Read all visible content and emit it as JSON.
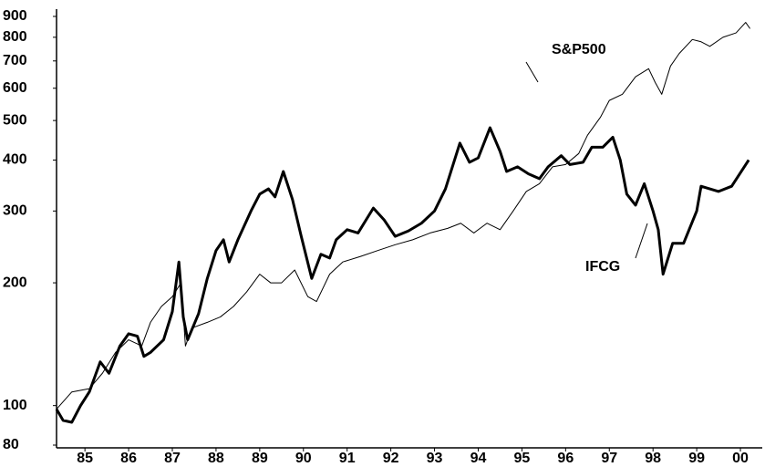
{
  "chart_data": {
    "type": "line",
    "log_y": true,
    "grid": false,
    "ylim": [
      80,
      900
    ],
    "yticks": [
      80,
      100,
      200,
      300,
      400,
      500,
      600,
      700,
      800,
      900
    ],
    "xlim": [
      1984.85,
      2001.0
    ],
    "xticks": [
      {
        "value": 1985.5,
        "label": "85"
      },
      {
        "value": 1986.5,
        "label": "86"
      },
      {
        "value": 1987.5,
        "label": "87"
      },
      {
        "value": 1988.5,
        "label": "88"
      },
      {
        "value": 1989.5,
        "label": "89"
      },
      {
        "value": 1990.5,
        "label": "90"
      },
      {
        "value": 1991.5,
        "label": "91"
      },
      {
        "value": 1992.5,
        "label": "92"
      },
      {
        "value": 1993.5,
        "label": "93"
      },
      {
        "value": 1994.5,
        "label": "94"
      },
      {
        "value": 1995.5,
        "label": "95"
      },
      {
        "value": 1996.5,
        "label": "96"
      },
      {
        "value": 1997.5,
        "label": "97"
      },
      {
        "value": 1998.5,
        "label": "98"
      },
      {
        "value": 1999.5,
        "label": "99"
      },
      {
        "value": 2000.5,
        "label": "00"
      }
    ],
    "annotations": [
      {
        "text": "S&P500"
      },
      {
        "text": "IFCG"
      }
    ],
    "series": [
      {
        "name": "S&P500",
        "color": "#000000",
        "line_width": 1,
        "x": [
          1984.85,
          1985.2,
          1985.6,
          1985.9,
          1986.2,
          1986.5,
          1986.8,
          1987.0,
          1987.25,
          1987.5,
          1987.7,
          1987.8,
          1987.95,
          1988.3,
          1988.6,
          1988.9,
          1989.2,
          1989.5,
          1989.75,
          1990.0,
          1990.3,
          1990.6,
          1990.8,
          1991.1,
          1991.4,
          1991.8,
          1992.2,
          1992.6,
          1993.0,
          1993.4,
          1993.8,
          1994.1,
          1994.4,
          1994.7,
          1995.0,
          1995.3,
          1995.6,
          1995.9,
          1996.2,
          1996.5,
          1996.8,
          1997.0,
          1997.3,
          1997.5,
          1997.8,
          1998.1,
          1998.4,
          1998.55,
          1998.7,
          1998.9,
          1999.1,
          1999.4,
          1999.6,
          1999.8,
          2000.1,
          2000.4,
          2000.62,
          2000.72
        ],
        "values": [
          98,
          108,
          110,
          120,
          135,
          145,
          140,
          160,
          175,
          185,
          200,
          140,
          155,
          160,
          165,
          175,
          190,
          210,
          200,
          200,
          215,
          185,
          180,
          210,
          225,
          232,
          240,
          248,
          255,
          265,
          272,
          280,
          265,
          280,
          270,
          300,
          335,
          350,
          385,
          390,
          415,
          460,
          510,
          560,
          580,
          640,
          670,
          620,
          580,
          680,
          730,
          790,
          780,
          760,
          800,
          820,
          870,
          840
        ]
      },
      {
        "name": "IFCG",
        "color": "#000000",
        "line_width": 3,
        "x": [
          1984.85,
          1985.0,
          1985.2,
          1985.4,
          1985.6,
          1985.85,
          1986.05,
          1986.3,
          1986.5,
          1986.7,
          1986.85,
          1987.0,
          1987.3,
          1987.5,
          1987.65,
          1987.75,
          1987.85,
          1988.1,
          1988.3,
          1988.5,
          1988.67,
          1988.8,
          1989.0,
          1989.3,
          1989.5,
          1989.7,
          1989.85,
          1990.04,
          1990.25,
          1990.45,
          1990.69,
          1990.9,
          1991.1,
          1991.25,
          1991.5,
          1991.75,
          1992.1,
          1992.35,
          1992.6,
          1992.9,
          1993.2,
          1993.5,
          1993.75,
          1994.08,
          1994.3,
          1994.5,
          1994.77,
          1995.0,
          1995.15,
          1995.4,
          1995.65,
          1995.9,
          1996.1,
          1996.4,
          1996.6,
          1996.9,
          1997.1,
          1997.35,
          1997.58,
          1997.75,
          1997.9,
          1998.1,
          1998.3,
          1998.5,
          1998.62,
          1998.73,
          1998.95,
          1999.2,
          1999.5,
          1999.6,
          2000.0,
          2000.3,
          2000.69
        ],
        "values": [
          98,
          92,
          91,
          100,
          108,
          128,
          120,
          140,
          150,
          148,
          132,
          135,
          145,
          170,
          225,
          165,
          145,
          168,
          205,
          240,
          255,
          225,
          255,
          300,
          330,
          340,
          325,
          375,
          320,
          260,
          205,
          235,
          230,
          255,
          270,
          265,
          305,
          285,
          260,
          268,
          280,
          300,
          340,
          440,
          395,
          405,
          480,
          420,
          375,
          385,
          370,
          360,
          385,
          410,
          390,
          395,
          430,
          430,
          455,
          400,
          330,
          310,
          350,
          300,
          270,
          210,
          250,
          250,
          300,
          345,
          335,
          345,
          400
        ]
      }
    ]
  }
}
